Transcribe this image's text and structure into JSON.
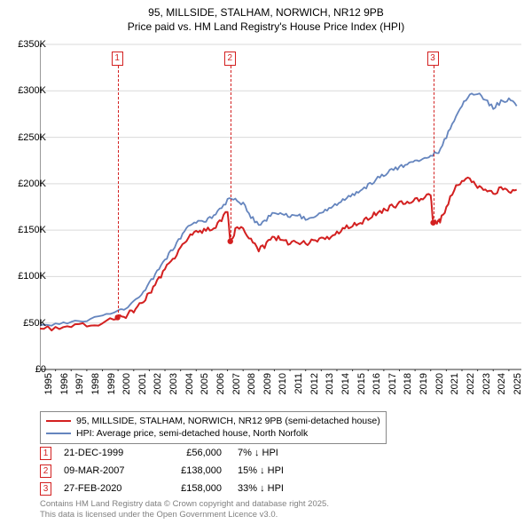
{
  "title_line1": "95, MILLSIDE, STALHAM, NORWICH, NR12 9PB",
  "title_line2": "Price paid vs. HM Land Registry's House Price Index (HPI)",
  "chart": {
    "type": "line",
    "background_color": "#ffffff",
    "grid_color": "#d9d9d9",
    "axis_color": "#333333",
    "font_size_axis": 11,
    "font_size_title": 12,
    "xlim": [
      1995,
      2025.8
    ],
    "ylim": [
      0,
      350000
    ],
    "ytick_step": 50000,
    "y_ticks": [
      {
        "v": 0,
        "label": "£0"
      },
      {
        "v": 50000,
        "label": "£50K"
      },
      {
        "v": 100000,
        "label": "£100K"
      },
      {
        "v": 150000,
        "label": "£150K"
      },
      {
        "v": 200000,
        "label": "£200K"
      },
      {
        "v": 250000,
        "label": "£250K"
      },
      {
        "v": 300000,
        "label": "£300K"
      },
      {
        "v": 350000,
        "label": "£350K"
      }
    ],
    "x_ticks": [
      1995,
      1996,
      1997,
      1998,
      1999,
      2000,
      2001,
      2002,
      2003,
      2004,
      2005,
      2006,
      2007,
      2008,
      2009,
      2010,
      2011,
      2012,
      2013,
      2014,
      2015,
      2016,
      2017,
      2018,
      2019,
      2020,
      2021,
      2022,
      2023,
      2024,
      2025
    ],
    "series": [
      {
        "name": "price_paid",
        "color": "#d32020",
        "line_width": 2.0,
        "points": [
          [
            1995,
            44000
          ],
          [
            1996,
            44500
          ],
          [
            1997,
            45500
          ],
          [
            1998,
            47500
          ],
          [
            1999,
            50000
          ],
          [
            1999.97,
            56000
          ],
          [
            2000.5,
            58000
          ],
          [
            2001,
            64000
          ],
          [
            2001.5,
            72000
          ],
          [
            2002,
            82000
          ],
          [
            2002.5,
            95000
          ],
          [
            2003,
            108000
          ],
          [
            2003.5,
            118000
          ],
          [
            2004,
            130000
          ],
          [
            2004.5,
            142000
          ],
          [
            2005,
            148000
          ],
          [
            2005.5,
            150000
          ],
          [
            2006,
            152000
          ],
          [
            2006.5,
            158000
          ],
          [
            2007,
            170000
          ],
          [
            2007.18,
            138000
          ],
          [
            2007.5,
            150000
          ],
          [
            2008,
            152000
          ],
          [
            2008.5,
            140000
          ],
          [
            2009,
            128000
          ],
          [
            2009.5,
            135000
          ],
          [
            2010,
            142000
          ],
          [
            2010.5,
            140000
          ],
          [
            2011,
            136000
          ],
          [
            2011.5,
            138000
          ],
          [
            2012,
            135000
          ],
          [
            2012.5,
            138000
          ],
          [
            2013,
            140000
          ],
          [
            2013.5,
            142000
          ],
          [
            2014,
            148000
          ],
          [
            2014.5,
            152000
          ],
          [
            2015,
            155000
          ],
          [
            2015.5,
            158000
          ],
          [
            2016,
            162000
          ],
          [
            2016.5,
            168000
          ],
          [
            2017,
            172000
          ],
          [
            2017.5,
            175000
          ],
          [
            2018,
            178000
          ],
          [
            2018.5,
            180000
          ],
          [
            2019,
            182000
          ],
          [
            2019.5,
            185000
          ],
          [
            2020,
            187000
          ],
          [
            2020.16,
            158000
          ],
          [
            2020.4,
            158000
          ],
          [
            2020.6,
            160000
          ],
          [
            2021,
            175000
          ],
          [
            2021.5,
            195000
          ],
          [
            2022,
            203000
          ],
          [
            2022.5,
            205000
          ],
          [
            2023,
            198000
          ],
          [
            2023.5,
            192000
          ],
          [
            2024,
            190000
          ],
          [
            2024.5,
            195000
          ],
          [
            2025,
            190000
          ],
          [
            2025.5,
            192000
          ]
        ]
      },
      {
        "name": "hpi",
        "color": "#6585be",
        "line_width": 1.8,
        "points": [
          [
            1995,
            48000
          ],
          [
            1996,
            49000
          ],
          [
            1997,
            51000
          ],
          [
            1998,
            54000
          ],
          [
            1999,
            58000
          ],
          [
            2000,
            63000
          ],
          [
            2000.5,
            67000
          ],
          [
            2001,
            73000
          ],
          [
            2001.5,
            80000
          ],
          [
            2002,
            92000
          ],
          [
            2002.5,
            105000
          ],
          [
            2003,
            118000
          ],
          [
            2003.5,
            130000
          ],
          [
            2004,
            142000
          ],
          [
            2004.5,
            153000
          ],
          [
            2005,
            158000
          ],
          [
            2005.5,
            160000
          ],
          [
            2006,
            164000
          ],
          [
            2006.5,
            172000
          ],
          [
            2007,
            182000
          ],
          [
            2007.5,
            185000
          ],
          [
            2008,
            178000
          ],
          [
            2008.5,
            165000
          ],
          [
            2009,
            155000
          ],
          [
            2009.5,
            162000
          ],
          [
            2010,
            170000
          ],
          [
            2010.5,
            168000
          ],
          [
            2011,
            164000
          ],
          [
            2011.5,
            166000
          ],
          [
            2012,
            162000
          ],
          [
            2012.5,
            165000
          ],
          [
            2013,
            168000
          ],
          [
            2013.5,
            172000
          ],
          [
            2014,
            178000
          ],
          [
            2014.5,
            183000
          ],
          [
            2015,
            188000
          ],
          [
            2015.5,
            192000
          ],
          [
            2016,
            198000
          ],
          [
            2016.5,
            205000
          ],
          [
            2017,
            210000
          ],
          [
            2017.5,
            214000
          ],
          [
            2018,
            218000
          ],
          [
            2018.5,
            221000
          ],
          [
            2019,
            224000
          ],
          [
            2019.5,
            227000
          ],
          [
            2020,
            230000
          ],
          [
            2020.5,
            235000
          ],
          [
            2021,
            250000
          ],
          [
            2021.5,
            268000
          ],
          [
            2022,
            285000
          ],
          [
            2022.5,
            295000
          ],
          [
            2023,
            298000
          ],
          [
            2023.5,
            290000
          ],
          [
            2024,
            282000
          ],
          [
            2024.5,
            288000
          ],
          [
            2025,
            290000
          ],
          [
            2025.5,
            285000
          ]
        ]
      }
    ],
    "markers": [
      {
        "n": "1",
        "x": 1999.97,
        "y": 56000,
        "color": "#d32020"
      },
      {
        "n": "2",
        "x": 2007.18,
        "y": 138000,
        "color": "#d32020"
      },
      {
        "n": "3",
        "x": 2020.16,
        "y": 158000,
        "color": "#d32020"
      }
    ]
  },
  "legend": {
    "border_color": "#888888",
    "items": [
      {
        "color": "#d32020",
        "label": "95, MILLSIDE, STALHAM, NORWICH, NR12 9PB (semi-detached house)"
      },
      {
        "color": "#6585be",
        "label": "HPI: Average price, semi-detached house, North Norfolk"
      }
    ]
  },
  "events": [
    {
      "n": "1",
      "color": "#d32020",
      "date": "21-DEC-1999",
      "price": "£56,000",
      "delta": "7% ↓ HPI"
    },
    {
      "n": "2",
      "color": "#d32020",
      "date": "09-MAR-2007",
      "price": "£138,000",
      "delta": "15% ↓ HPI"
    },
    {
      "n": "3",
      "color": "#d32020",
      "date": "27-FEB-2020",
      "price": "£158,000",
      "delta": "33% ↓ HPI"
    }
  ],
  "footer_line1": "Contains HM Land Registry data © Crown copyright and database right 2025.",
  "footer_line2": "This data is licensed under the Open Government Licence v3.0."
}
